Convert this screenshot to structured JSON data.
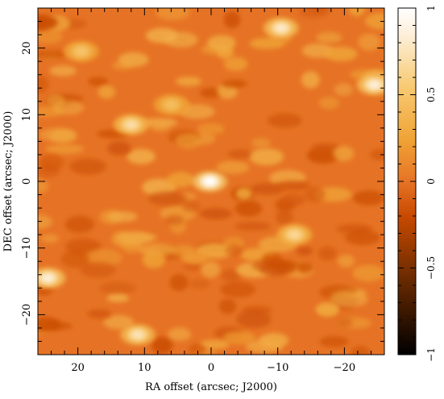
{
  "chart_data": {
    "type": "heatmap",
    "xlabel": "RA offset (arcsec; J2000)",
    "ylabel": "DEC offset (arcsec; J2000)",
    "xlim": [
      26,
      -26
    ],
    "ylim": [
      -26,
      26
    ],
    "xticks": [
      20,
      10,
      0,
      -10,
      -20
    ],
    "yticks": [
      -20,
      -10,
      0,
      10,
      20
    ],
    "xtick_labels": [
      "20",
      "10",
      "0",
      "−10",
      "−20"
    ],
    "ytick_labels": [
      "−20",
      "−10",
      "0",
      "10",
      "20"
    ],
    "colorbar": {
      "range": [
        -1,
        1
      ],
      "ticks": [
        -1,
        -0.5,
        0,
        0.5,
        1
      ],
      "tick_labels": [
        "−1",
        "−0.5",
        "0",
        "0.5",
        "1"
      ]
    },
    "background_value": 0,
    "peaks": [
      {
        "x": 0.2,
        "y": 0.0,
        "value": 1.0
      },
      {
        "x": -10.5,
        "y": 23.0,
        "value": 0.8
      },
      {
        "x": -24.5,
        "y": 14.5,
        "value": 0.85
      },
      {
        "x": 12.0,
        "y": 8.5,
        "value": 0.7
      },
      {
        "x": 24.5,
        "y": -14.5,
        "value": 0.85
      },
      {
        "x": 11.0,
        "y": -23.0,
        "value": 0.75
      },
      {
        "x": -12.5,
        "y": -8.0,
        "value": 0.65
      },
      {
        "x": 19.5,
        "y": 19.5,
        "value": 0.5
      },
      {
        "x": 6.0,
        "y": 11.5,
        "value": 0.45
      }
    ],
    "grid": false
  }
}
